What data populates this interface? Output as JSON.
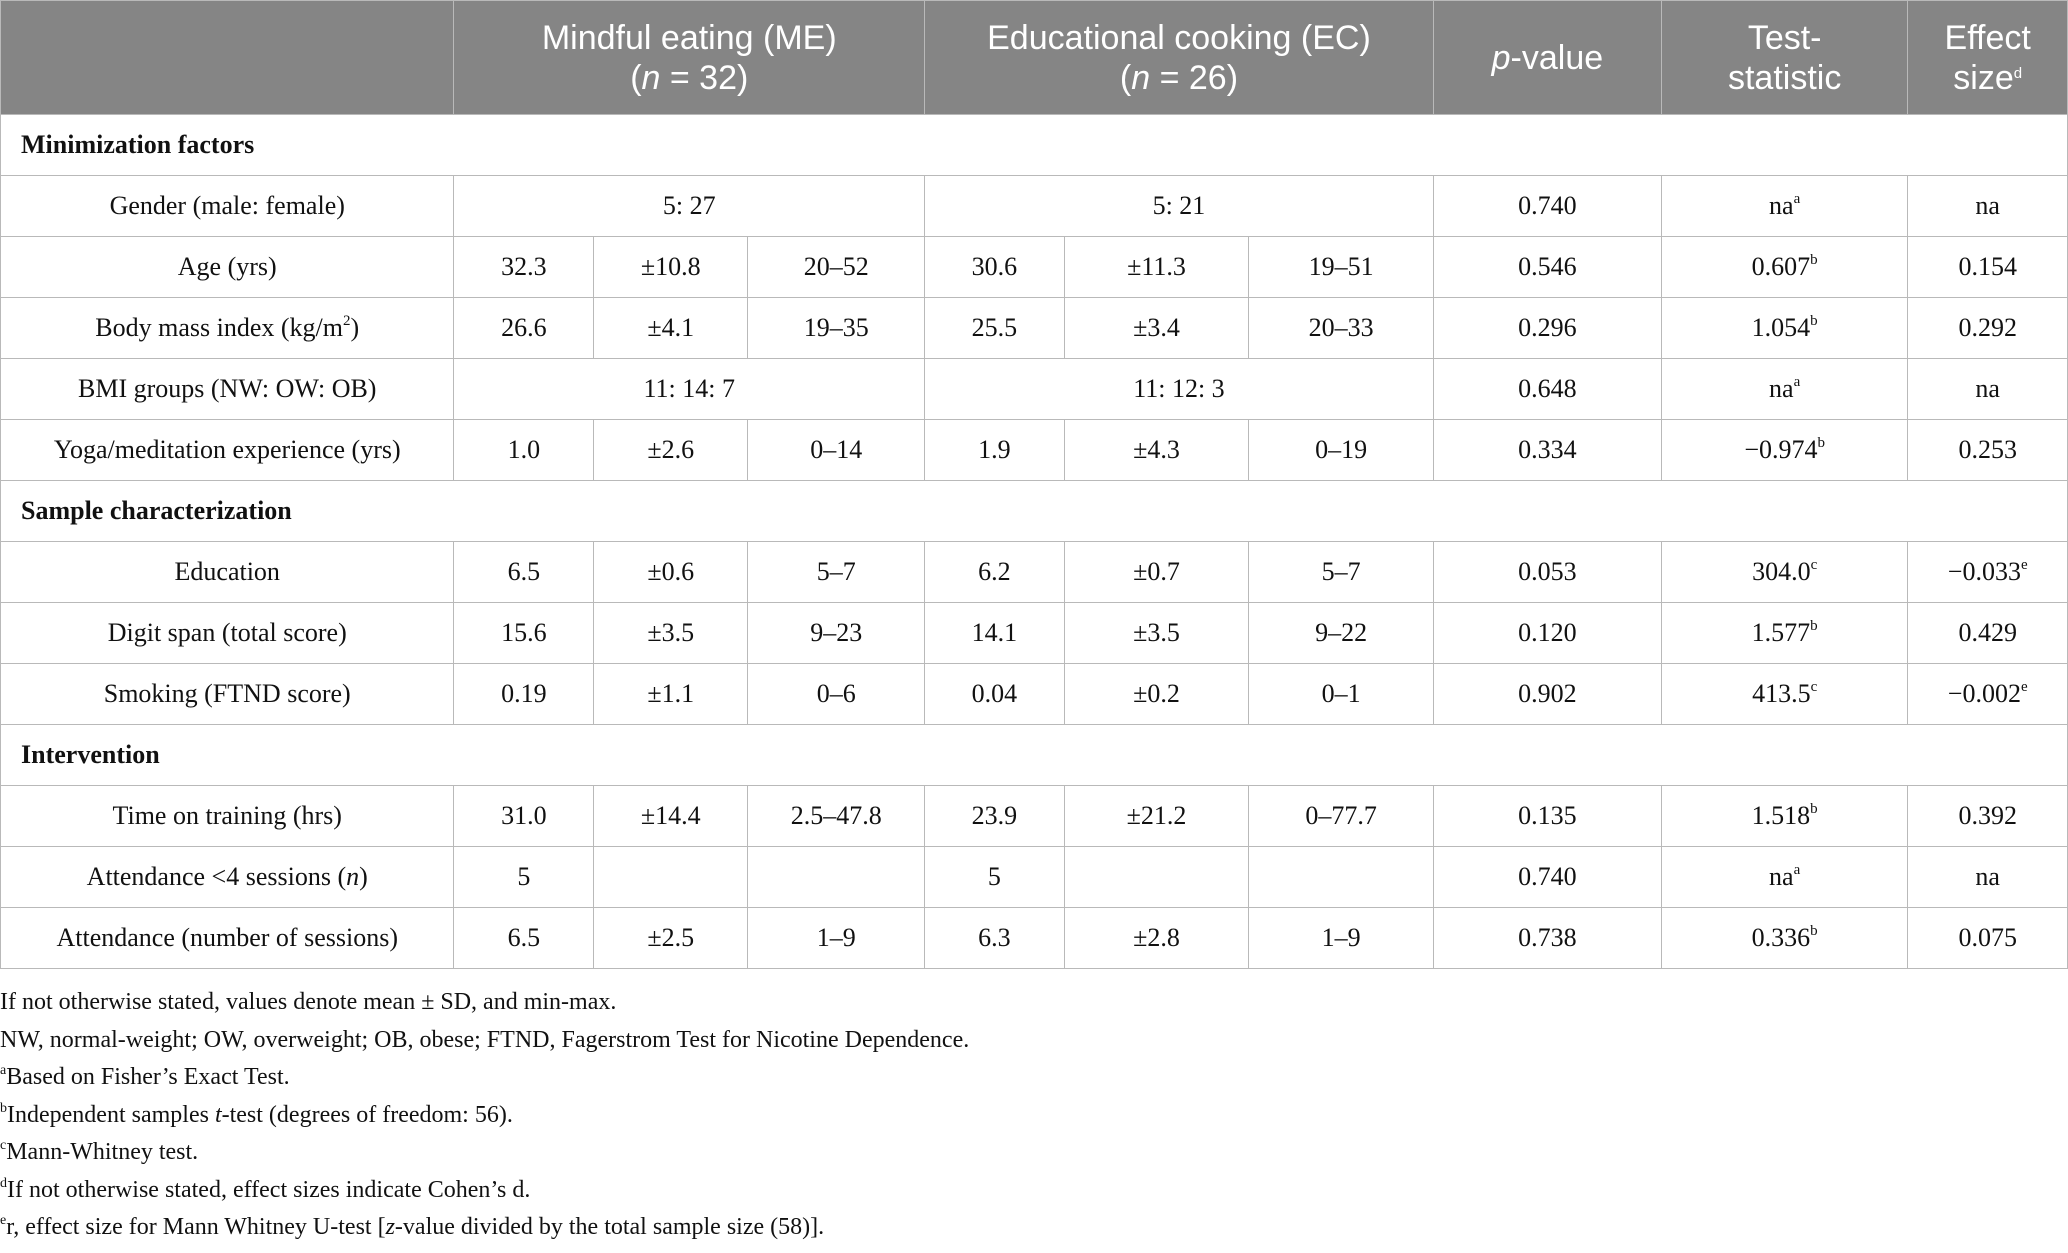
{
  "header": {
    "col_me_title": "Mindful eating (ME)",
    "col_me_n": "(n = 32)",
    "col_ec_title": "Educational cooking (EC)",
    "col_ec_n": "(n = 26)",
    "col_p": "p-value",
    "col_test_line1": "Test-",
    "col_test_line2": "statistic",
    "col_effect_line1": "Effect",
    "col_effect_line2": "size",
    "col_effect_sup": "d"
  },
  "sections": {
    "minimization": "Minimization factors",
    "sample": "Sample characterization",
    "intervention": "Intervention"
  },
  "rows": {
    "gender": {
      "label": "Gender (male: female)",
      "me": "5: 27",
      "ec": "5: 21",
      "p": "0.740",
      "stat": "na",
      "stat_sup": "a",
      "effect": "na",
      "effect_sup": ""
    },
    "age": {
      "label": "Age (yrs)",
      "me_mean": "32.3",
      "me_sd": "±10.8",
      "me_range": "20–52",
      "ec_mean": "30.6",
      "ec_sd": "±11.3",
      "ec_range": "19–51",
      "p": "0.546",
      "stat": "0.607",
      "stat_sup": "b",
      "effect": "0.154",
      "effect_sup": ""
    },
    "bmi": {
      "label": "Body mass index (kg/m",
      "label_sup": "2",
      "label_end": ")",
      "me_mean": "26.6",
      "me_sd": "±4.1",
      "me_range": "19–35",
      "ec_mean": "25.5",
      "ec_sd": "±3.4",
      "ec_range": "20–33",
      "p": "0.296",
      "stat": "1.054",
      "stat_sup": "b",
      "effect": "0.292",
      "effect_sup": ""
    },
    "bmi_groups": {
      "label": "BMI groups (NW: OW: OB)",
      "me": "11: 14: 7",
      "ec": "11: 12: 3",
      "p": "0.648",
      "stat": "na",
      "stat_sup": "a",
      "effect": "na",
      "effect_sup": ""
    },
    "yoga": {
      "label": "Yoga/meditation experience (yrs)",
      "me_mean": "1.0",
      "me_sd": "±2.6",
      "me_range": "0–14",
      "ec_mean": "1.9",
      "ec_sd": "±4.3",
      "ec_range": "0–19",
      "p": "0.334",
      "stat": "−0.974",
      "stat_sup": "b",
      "effect": "0.253",
      "effect_sup": ""
    },
    "education": {
      "label": "Education",
      "me_mean": "6.5",
      "me_sd": "±0.6",
      "me_range": "5–7",
      "ec_mean": "6.2",
      "ec_sd": "±0.7",
      "ec_range": "5–7",
      "p": "0.053",
      "stat": "304.0",
      "stat_sup": "c",
      "effect": "−0.033",
      "effect_sup": "e"
    },
    "digit": {
      "label": "Digit span (total score)",
      "me_mean": "15.6",
      "me_sd": "±3.5",
      "me_range": "9–23",
      "ec_mean": "14.1",
      "ec_sd": "±3.5",
      "ec_range": "9–22",
      "p": "0.120",
      "stat": "1.577",
      "stat_sup": "b",
      "effect": "0.429",
      "effect_sup": ""
    },
    "smoking": {
      "label": "Smoking (FTND score)",
      "me_mean": "0.19",
      "me_sd": "±1.1",
      "me_range": "0–6",
      "ec_mean": "0.04",
      "ec_sd": "±0.2",
      "ec_range": "0–1",
      "p": "0.902",
      "stat": "413.5",
      "stat_sup": "c",
      "effect": "−0.002",
      "effect_sup": "e"
    },
    "time": {
      "label": "Time on training (hrs)",
      "me_mean": "31.0",
      "me_sd": "±14.4",
      "me_range": "2.5–47.8",
      "ec_mean": "23.9",
      "ec_sd": "±21.2",
      "ec_range": "0–77.7",
      "p": "0.135",
      "stat": "1.518",
      "stat_sup": "b",
      "effect": "0.392",
      "effect_sup": ""
    },
    "attend_lt4": {
      "label": "Attendance <4 sessions (",
      "label_italic": "n",
      "label_end": ")",
      "me_mean": "5",
      "me_sd": "",
      "me_range": "",
      "ec_mean": "5",
      "ec_sd": "",
      "ec_range": "",
      "p": "0.740",
      "stat": "na",
      "stat_sup": "a",
      "effect": "na",
      "effect_sup": ""
    },
    "attend_num": {
      "label": "Attendance (number of sessions)",
      "me_mean": "6.5",
      "me_sd": "±2.5",
      "me_range": "1–9",
      "ec_mean": "6.3",
      "ec_sd": "±2.8",
      "ec_range": "1–9",
      "p": "0.738",
      "stat": "0.336",
      "stat_sup": "b",
      "effect": "0.075",
      "effect_sup": ""
    }
  },
  "notes": {
    "n1": "If not otherwise stated, values denote mean ± SD, and min-max.",
    "n2": "NW, normal-weight; OW, overweight; OB, obese; FTND, Fagerstrom Test for Nicotine Dependence.",
    "n3_sup": "a",
    "n3": "Based on Fisher’s Exact Test.",
    "n4_sup": "b",
    "n4_a": "Independent samples ",
    "n4_i": "t",
    "n4_b": "-test (degrees of freedom: 56).",
    "n5_sup": "c",
    "n5": "Mann-Whitney test.",
    "n6_sup": "d",
    "n6": "If not otherwise stated, effect sizes indicate Cohen’s d.",
    "n7_sup": "e",
    "n7_a": "r, effect size for Mann Whitney U-test [",
    "n7_i": "z",
    "n7_b": "-value divided by the total sample size (58)]."
  }
}
